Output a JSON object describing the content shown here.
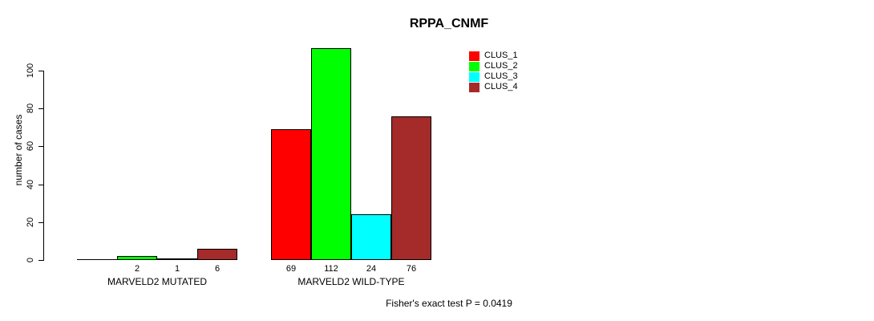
{
  "chart_data": {
    "type": "bar",
    "title": "RPPA_CNMF",
    "ylabel": "number of cases",
    "xlabel": "",
    "categories": [
      "MARVELD2 MUTATED",
      "MARVELD2 WILD-TYPE"
    ],
    "series": [
      {
        "name": "CLUS_1",
        "color": "#FF0000",
        "values": [
          0,
          69
        ]
      },
      {
        "name": "CLUS_2",
        "color": "#00FF00",
        "values": [
          2,
          112
        ]
      },
      {
        "name": "CLUS_3",
        "color": "#00FFFF",
        "values": [
          1,
          24
        ]
      },
      {
        "name": "CLUS_4",
        "color": "#A52A2A",
        "values": [
          6,
          76
        ]
      }
    ],
    "bar_value_labels": [
      [
        "",
        "2",
        "1",
        "6"
      ],
      [
        "69",
        "112",
        "24",
        "76"
      ]
    ],
    "yticks": [
      0,
      20,
      40,
      60,
      80,
      100
    ],
    "ylim": [
      0,
      112
    ],
    "grid": false,
    "legend_position": "top-right",
    "bar_border_color": "#000000",
    "annotation": "Fisher's exact test P = 0.0419"
  }
}
